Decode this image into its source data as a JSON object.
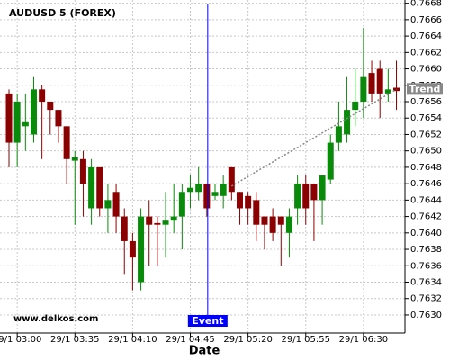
{
  "chart_data": {
    "type": "candlestick",
    "title": "AUDUSD 5 (FOREX)",
    "watermark": "www.delkos.com",
    "x_label": "Date",
    "categories": [
      null,
      "29/1 03:00",
      null,
      null,
      null,
      null,
      null,
      null,
      "29/1 03:35",
      null,
      null,
      null,
      null,
      null,
      null,
      "29/1 04:10",
      null,
      null,
      null,
      null,
      null,
      null,
      "29/1 04:45",
      null,
      null,
      null,
      null,
      null,
      null,
      "29/1 05:20",
      null,
      null,
      null,
      null,
      null,
      null,
      "29/1 05:55",
      null,
      null,
      null,
      null,
      null,
      null,
      "29/1 06:30",
      null,
      null,
      null,
      null
    ],
    "open": [
      0.7657,
      0.7651,
      0.7653,
      0.7652,
      0.76575,
      0.7656,
      0.7655,
      0.7653,
      0.76488,
      0.7649,
      0.7643,
      0.7648,
      0.7643,
      0.7645,
      0.7642,
      0.7639,
      0.7634,
      0.7642,
      0.76412,
      0.7641,
      0.76415,
      0.7642,
      0.7645,
      0.7645,
      0.7646,
      0.76445,
      0.76445,
      0.7648,
      0.7645,
      0.76445,
      0.7644,
      0.7642,
      0.7642,
      0.7642,
      0.764,
      0.7643,
      0.7646,
      0.7646,
      0.7644,
      0.76465,
      0.7651,
      0.7652,
      0.7655,
      0.7656,
      0.76595,
      0.766,
      0.7657,
      0.76577
    ],
    "high": [
      0.76575,
      0.7657,
      0.7657,
      0.7659,
      0.7658,
      0.7656,
      0.7655,
      0.7653,
      0.765,
      0.765,
      0.7649,
      0.7648,
      0.7646,
      0.7646,
      0.7643,
      0.764,
      0.7643,
      0.7644,
      0.7642,
      0.7645,
      0.7646,
      0.7646,
      0.7647,
      0.7648,
      0.7646,
      0.7646,
      0.7647,
      0.7648,
      0.7645,
      0.7645,
      0.7645,
      0.7642,
      0.7643,
      0.7642,
      0.7643,
      0.7647,
      0.7647,
      0.7646,
      0.7647,
      0.7652,
      0.7656,
      0.7659,
      0.766,
      0.7665,
      0.7661,
      0.7661,
      0.766,
      0.7661
    ],
    "low": [
      0.7648,
      0.7648,
      0.765,
      0.7651,
      0.7649,
      0.7652,
      0.7651,
      0.7646,
      0.7641,
      0.7642,
      0.7641,
      0.7642,
      0.764,
      0.764,
      0.7635,
      0.7633,
      0.7633,
      0.7636,
      0.7636,
      0.7637,
      0.764,
      0.7638,
      0.7643,
      0.7644,
      0.7642,
      0.7644,
      0.7643,
      0.7644,
      0.7641,
      0.7641,
      0.7639,
      0.7638,
      0.7639,
      0.7636,
      0.7637,
      0.7641,
      0.7641,
      0.7639,
      0.7641,
      0.7646,
      0.765,
      0.7651,
      0.7653,
      0.7654,
      0.7656,
      0.7654,
      0.7656,
      0.7655
    ],
    "close": [
      0.7651,
      0.7656,
      0.76535,
      0.76575,
      0.7656,
      0.7655,
      0.7653,
      0.7649,
      0.76492,
      0.7646,
      0.7648,
      0.7643,
      0.7644,
      0.7642,
      0.7639,
      0.7637,
      0.7642,
      0.7641,
      0.7641,
      0.76415,
      0.7642,
      0.7645,
      0.76455,
      0.7646,
      0.7643,
      0.7645,
      0.7646,
      0.7645,
      0.7643,
      0.7643,
      0.7641,
      0.7641,
      0.764,
      0.7641,
      0.7642,
      0.7646,
      0.7643,
      0.7644,
      0.7647,
      0.7651,
      0.7653,
      0.7655,
      0.7656,
      0.7659,
      0.7657,
      0.7657,
      0.76575,
      0.76573
    ],
    "up_color": "#0a8a0a",
    "down_color": "#8b0000",
    "ylim": [
      0.76278,
      0.76684
    ],
    "yticks": [
      {
        "value": 0.763,
        "label": "0.7630"
      },
      0.7632,
      0.7634,
      0.7636,
      0.7638,
      {
        "value": 0.764,
        "label": "0.7640"
      },
      0.7642,
      0.7644,
      0.7646,
      0.7648,
      {
        "value": 0.765,
        "label": "0.7650"
      },
      0.7652,
      0.7654,
      0.7656,
      0.7658,
      {
        "value": 0.766,
        "label": "0.7660"
      },
      0.7662,
      0.7664,
      0.7666,
      0.7668
    ],
    "grid": true,
    "event": {
      "label": "Event",
      "index": 24,
      "color": "#0000ff"
    },
    "trend": {
      "name": "Trend",
      "x": [
        27,
        47
      ],
      "values": [
        0.76457,
        0.76575
      ],
      "color": "#888888"
    }
  }
}
